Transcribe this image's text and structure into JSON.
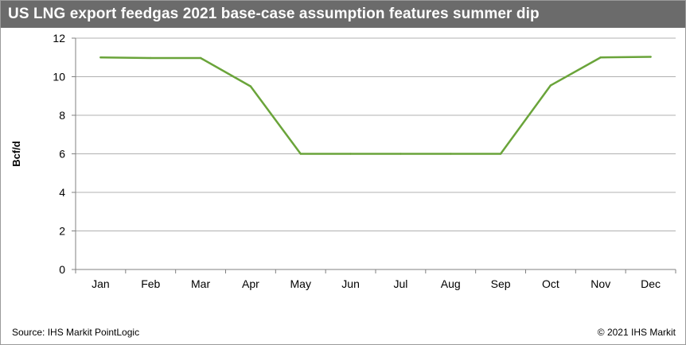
{
  "title": "US LNG export feedgas 2021 base-case assumption features summer dip",
  "source": "Source: IHS Markit PointLogic",
  "copyright": "© 2021 IHS Markit",
  "colors": {
    "title_bar": "#6b6b6b",
    "series_line": "#6aa43a",
    "grid": "#b0b0b0"
  },
  "chart_data": {
    "type": "line",
    "categories": [
      "Jan",
      "Feb",
      "Mar",
      "Apr",
      "May",
      "Jun",
      "Jul",
      "Aug",
      "Sep",
      "Oct",
      "Nov",
      "Dec"
    ],
    "series": [
      {
        "values": [
          11.0,
          10.97,
          10.97,
          9.5,
          6.0,
          6.0,
          6.0,
          6.0,
          6.0,
          9.55,
          11.0,
          11.03
        ]
      }
    ],
    "ylabel": "Bcf/d",
    "xlabel": "",
    "ylim": [
      0,
      12
    ],
    "yticks": [
      0,
      2,
      4,
      6,
      8,
      10,
      12
    ],
    "grid": true,
    "legend": "none"
  }
}
